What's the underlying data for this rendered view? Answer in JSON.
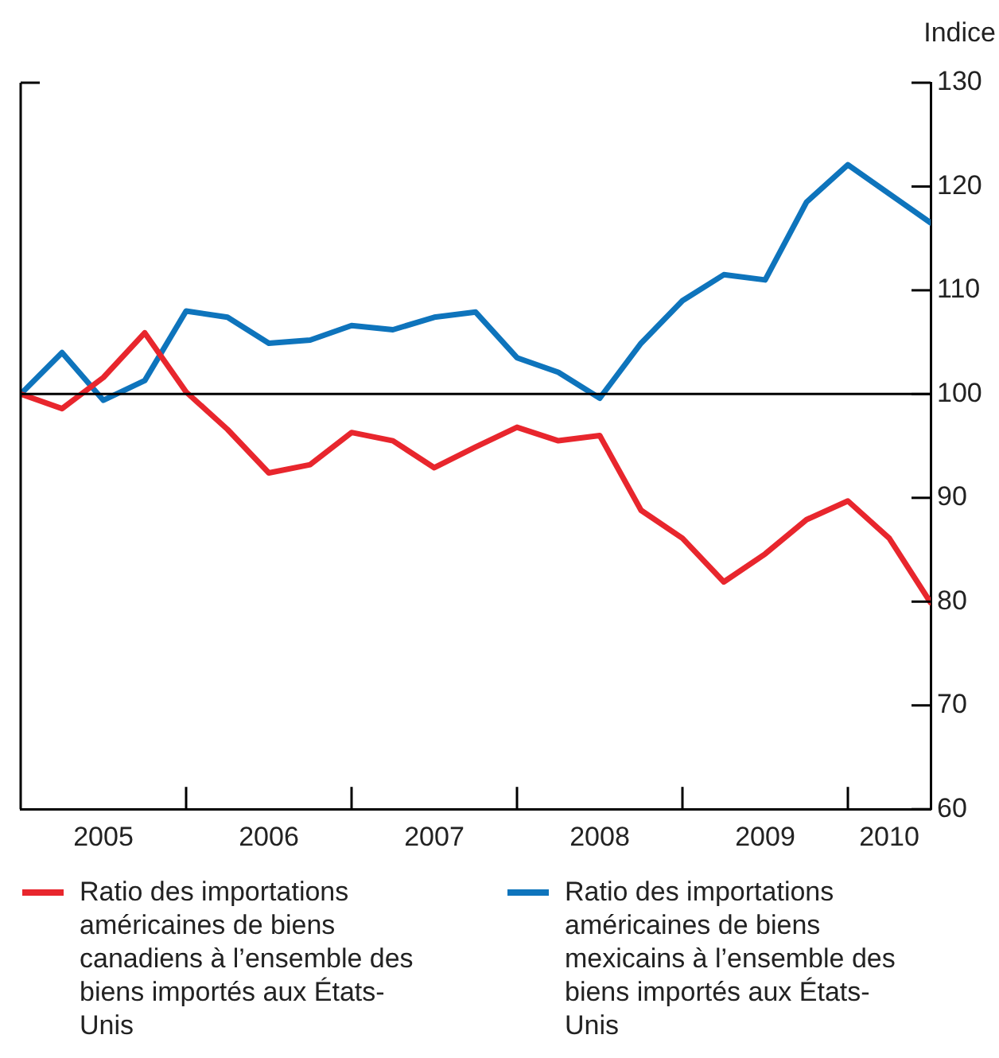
{
  "chart_data": {
    "type": "line",
    "ylabel": "Indice",
    "x": [
      2005,
      2005.25,
      2005.5,
      2005.75,
      2006,
      2006.25,
      2006.5,
      2006.75,
      2007,
      2007.25,
      2007.5,
      2007.75,
      2008,
      2008.25,
      2008.5,
      2008.75,
      2009,
      2009.25,
      2009.5,
      2009.75,
      2010,
      2010.25,
      2010.5
    ],
    "xlim": [
      2005,
      2010.5
    ],
    "xticks": [
      {
        "value": 2005.5,
        "label": "2005"
      },
      {
        "value": 2006,
        "label": null
      },
      {
        "value": 2006.5,
        "label": "2006"
      },
      {
        "value": 2007,
        "label": null
      },
      {
        "value": 2007.5,
        "label": "2007"
      },
      {
        "value": 2008,
        "label": null
      },
      {
        "value": 2008.5,
        "label": "2008"
      },
      {
        "value": 2009,
        "label": null
      },
      {
        "value": 2009.5,
        "label": "2009"
      },
      {
        "value": 2010,
        "label": null
      },
      {
        "value": 2010.25,
        "label": "2010"
      }
    ],
    "ylim": [
      60,
      130
    ],
    "yticks": [
      60,
      70,
      80,
      90,
      100,
      110,
      120,
      130
    ],
    "series": [
      {
        "name": "Ratio des importations américaines de biens canadiens à l’ensemble des biens importés aux États-Unis",
        "color": "#e8262d",
        "values": [
          100,
          98.6,
          101.6,
          105.9,
          100.2,
          96.6,
          92.4,
          93.2,
          96.3,
          95.5,
          92.9,
          94.9,
          96.8,
          95.5,
          96.0,
          88.8,
          86.1,
          81.9,
          84.6,
          87.9,
          89.7,
          86.1,
          79.9
        ]
      },
      {
        "name": "Ratio des importations américaines de biens mexicains à l’ensemble des biens importés aux États-Unis",
        "color": "#0e74bc",
        "values": [
          100,
          104.0,
          99.4,
          101.3,
          108.0,
          107.4,
          104.9,
          105.2,
          106.6,
          106.2,
          107.4,
          107.9,
          103.5,
          102.1,
          99.6,
          104.9,
          109.0,
          111.5,
          111.0,
          118.5,
          122.1,
          119.3,
          116.5
        ]
      }
    ],
    "ref_lines": [
      {
        "axis": "y",
        "value": 100,
        "color": "#000000"
      }
    ],
    "legend": "bottom",
    "marker": "none",
    "line_style": "solid",
    "grid": false
  }
}
